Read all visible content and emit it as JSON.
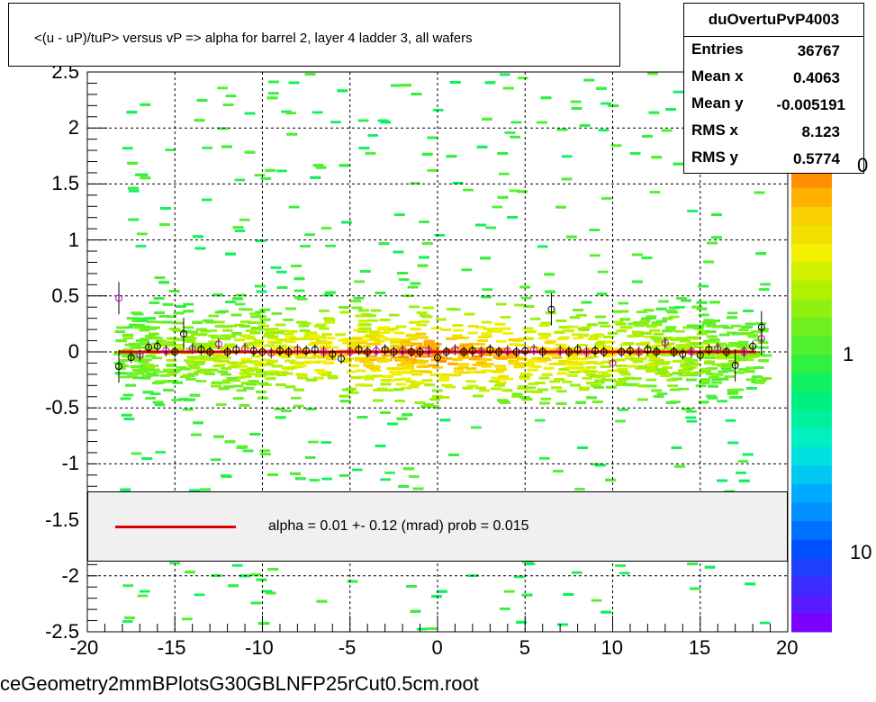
{
  "title": "<(u - uP)/tuP> versus   vP => alpha for barrel 2, layer 4 ladder 3, all wafers",
  "footer": "ceGeometry2mmBPlotsG30GBLNFP25rCut0.5cm.root",
  "stats": {
    "name": "duOvertuPvP4003",
    "rows": [
      {
        "label": "Entries",
        "value": "36767"
      },
      {
        "label": "Mean x",
        "value": "0.4063"
      },
      {
        "label": "Mean y",
        "value": "-0.005191"
      },
      {
        "label": "RMS x",
        "value": "8.123"
      },
      {
        "label": "RMS y",
        "value": "0.5774"
      }
    ]
  },
  "legend": {
    "text": "alpha =    0.01 +-  0.12 (mrad) prob = 0.015",
    "line_color": "#dd0000"
  },
  "colorbar": {
    "labels": [
      "0",
      "1",
      "10"
    ],
    "palette": [
      "#7a00ff",
      "#5a1aff",
      "#3b2cff",
      "#1f3fff",
      "#0050ff",
      "#0070ff",
      "#0090ff",
      "#00aaff",
      "#00c8f0",
      "#00e0e0",
      "#00f0c0",
      "#00f0a0",
      "#00f080",
      "#10f060",
      "#30f040",
      "#50f030",
      "#70f020",
      "#90f010",
      "#b0f000",
      "#d0f000",
      "#f0f000",
      "#f0e000",
      "#f8d000",
      "#ffb000",
      "#ff9000"
    ]
  },
  "chart_data": {
    "type": "heatmap",
    "title": "<(u - uP)/tuP> versus   vP => alpha for barrel 2, layer 4 ladder 3, all wafers",
    "xlabel": "",
    "ylabel": "",
    "xlim": [
      -20,
      20
    ],
    "ylim": [
      -2.5,
      2.5
    ],
    "x_ticks": [
      "-20",
      "-15",
      "-10",
      "-5",
      "0",
      "5",
      "10",
      "15",
      "20"
    ],
    "y_ticks": [
      "2.5",
      "2",
      "1.5",
      "1",
      "0.5",
      "0",
      "-0.5",
      "-1",
      "-1.5",
      "-2",
      "-2.5"
    ],
    "grid": true,
    "fit": {
      "intercept": 0.0,
      "slope": 1e-05,
      "xrange": [
        -18.2,
        18.2
      ],
      "color": "#dd0000"
    },
    "profile_points": [
      {
        "x": -18.2,
        "y": 0.48
      },
      {
        "x": -18.2,
        "y": -0.13
      },
      {
        "x": -17.5,
        "y": -0.05
      },
      {
        "x": -17.0,
        "y": -0.03
      },
      {
        "x": -16.5,
        "y": 0.04
      },
      {
        "x": -16.0,
        "y": 0.05
      },
      {
        "x": -15.5,
        "y": 0.01
      },
      {
        "x": -15.0,
        "y": 0.0
      },
      {
        "x": -14.5,
        "y": 0.16
      },
      {
        "x": -14.0,
        "y": 0.03
      },
      {
        "x": -13.5,
        "y": 0.02
      },
      {
        "x": -13.0,
        "y": 0.0
      },
      {
        "x": -12.5,
        "y": 0.07
      },
      {
        "x": -12.0,
        "y": 0.0
      },
      {
        "x": -11.5,
        "y": 0.02
      },
      {
        "x": -11.0,
        "y": 0.03
      },
      {
        "x": -10.5,
        "y": 0.01
      },
      {
        "x": -10.0,
        "y": 0.0
      },
      {
        "x": -9.5,
        "y": -0.01
      },
      {
        "x": -9.0,
        "y": 0.01
      },
      {
        "x": -8.5,
        "y": 0.0
      },
      {
        "x": -8.0,
        "y": 0.02
      },
      {
        "x": -7.5,
        "y": 0.01
      },
      {
        "x": -7.0,
        "y": 0.02
      },
      {
        "x": -6.5,
        "y": 0.0
      },
      {
        "x": -6.0,
        "y": -0.02
      },
      {
        "x": -5.5,
        "y": -0.06
      },
      {
        "x": -5.0,
        "y": 0.0
      },
      {
        "x": -4.5,
        "y": 0.02
      },
      {
        "x": -4.0,
        "y": 0.0
      },
      {
        "x": -3.5,
        "y": 0.01
      },
      {
        "x": -3.0,
        "y": 0.02
      },
      {
        "x": -2.5,
        "y": 0.0
      },
      {
        "x": -2.0,
        "y": 0.01
      },
      {
        "x": -1.5,
        "y": 0.0
      },
      {
        "x": -1.0,
        "y": 0.0
      },
      {
        "x": -0.5,
        "y": 0.01
      },
      {
        "x": 0.0,
        "y": -0.05
      },
      {
        "x": 0.5,
        "y": 0.0
      },
      {
        "x": 1.0,
        "y": 0.02
      },
      {
        "x": 1.5,
        "y": 0.0
      },
      {
        "x": 2.0,
        "y": 0.01
      },
      {
        "x": 2.5,
        "y": 0.0
      },
      {
        "x": 3.0,
        "y": 0.02
      },
      {
        "x": 3.5,
        "y": 0.0
      },
      {
        "x": 4.0,
        "y": 0.01
      },
      {
        "x": 4.5,
        "y": 0.0
      },
      {
        "x": 5.0,
        "y": 0.01
      },
      {
        "x": 5.5,
        "y": 0.02
      },
      {
        "x": 6.0,
        "y": 0.0
      },
      {
        "x": 6.5,
        "y": 0.38
      },
      {
        "x": 7.0,
        "y": 0.01
      },
      {
        "x": 7.5,
        "y": 0.0
      },
      {
        "x": 8.0,
        "y": 0.02
      },
      {
        "x": 8.5,
        "y": 0.0
      },
      {
        "x": 9.0,
        "y": 0.01
      },
      {
        "x": 9.5,
        "y": 0.0
      },
      {
        "x": 10.0,
        "y": -0.1
      },
      {
        "x": 10.5,
        "y": 0.0
      },
      {
        "x": 11.0,
        "y": 0.01
      },
      {
        "x": 11.5,
        "y": 0.0
      },
      {
        "x": 12.0,
        "y": 0.02
      },
      {
        "x": 12.5,
        "y": 0.0
      },
      {
        "x": 13.0,
        "y": 0.08
      },
      {
        "x": 13.5,
        "y": 0.0
      },
      {
        "x": 14.0,
        "y": -0.02
      },
      {
        "x": 14.5,
        "y": 0.0
      },
      {
        "x": 15.0,
        "y": -0.03
      },
      {
        "x": 15.5,
        "y": 0.02
      },
      {
        "x": 16.0,
        "y": 0.03
      },
      {
        "x": 16.5,
        "y": 0.0
      },
      {
        "x": 17.0,
        "y": -0.12
      },
      {
        "x": 17.5,
        "y": 0.0
      },
      {
        "x": 18.0,
        "y": 0.05
      },
      {
        "x": 18.5,
        "y": 0.22
      },
      {
        "x": 18.5,
        "y": 0.12
      }
    ]
  }
}
